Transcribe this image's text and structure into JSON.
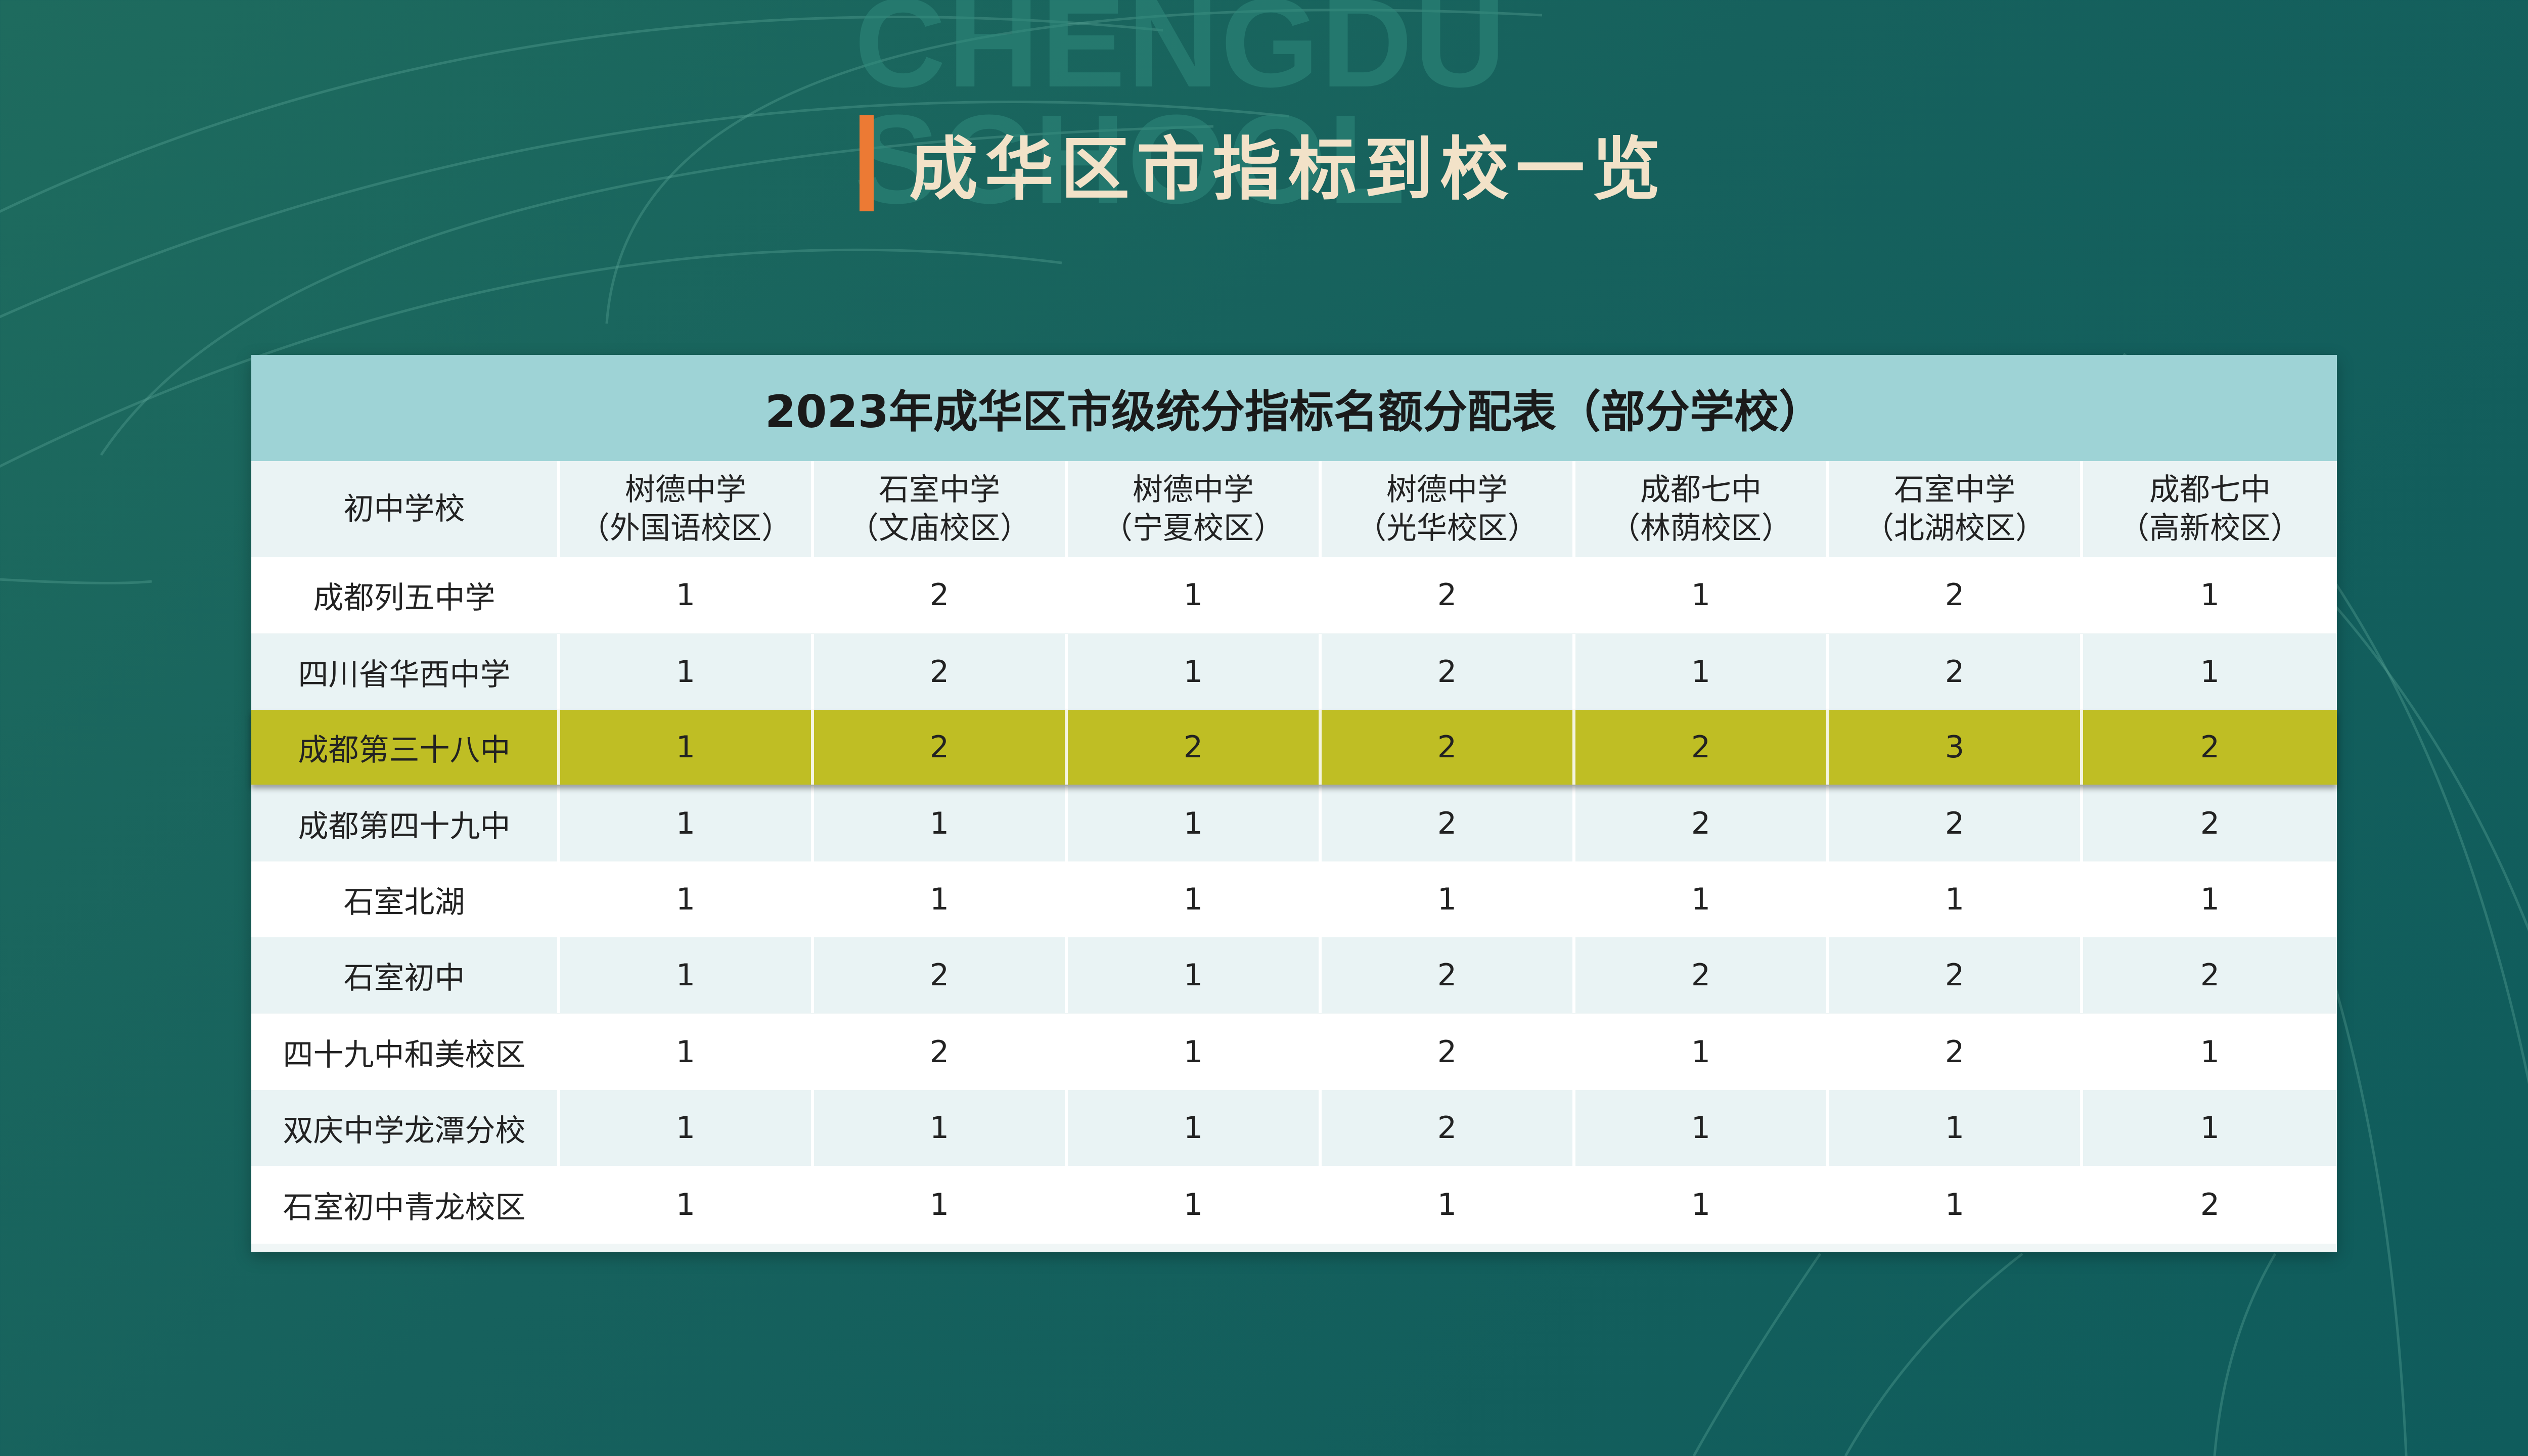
{
  "background": {
    "watermark_lines": [
      "CHENGDU",
      "SCHOOL"
    ]
  },
  "page_title": "成华区市指标到校一览",
  "colors": {
    "accent_bar": "#ec7a34",
    "caption_bg": "#9ed3d6",
    "highlight_row": "#bfbe24",
    "title_text": "#f2e2c8"
  },
  "table": {
    "caption": "2023年成华区市级统分指标名额分配表（部分学校）",
    "corner_header": "初中学校",
    "columns": [
      {
        "line1": "树德中学",
        "line2": "（外国语校区）"
      },
      {
        "line1": "石室中学",
        "line2": "（文庙校区）"
      },
      {
        "line1": "树德中学",
        "line2": "（宁夏校区）"
      },
      {
        "line1": "树德中学",
        "line2": "（光华校区）"
      },
      {
        "line1": "成都七中",
        "line2": "（林荫校区）"
      },
      {
        "line1": "石室中学",
        "line2": "（北湖校区）"
      },
      {
        "line1": "成都七中",
        "line2": "（高新校区）"
      }
    ],
    "rows": [
      {
        "school": "成都列五中学",
        "values": [
          "1",
          "2",
          "1",
          "2",
          "1",
          "2",
          "1"
        ]
      },
      {
        "school": "四川省华西中学",
        "values": [
          "1",
          "2",
          "1",
          "2",
          "1",
          "2",
          "1"
        ]
      },
      {
        "school": "成都第三十八中",
        "values": [
          "1",
          "2",
          "2",
          "2",
          "2",
          "3",
          "2"
        ],
        "highlighted": true
      },
      {
        "school": "成都第四十九中",
        "values": [
          "1",
          "1",
          "1",
          "2",
          "2",
          "2",
          "2"
        ]
      },
      {
        "school": "石室北湖",
        "values": [
          "1",
          "1",
          "1",
          "1",
          "1",
          "1",
          "1"
        ]
      },
      {
        "school": "石室初中",
        "values": [
          "1",
          "2",
          "1",
          "2",
          "2",
          "2",
          "2"
        ]
      },
      {
        "school": "四十九中和美校区",
        "values": [
          "1",
          "2",
          "1",
          "2",
          "1",
          "2",
          "1"
        ]
      },
      {
        "school": "双庆中学龙潭分校",
        "values": [
          "1",
          "1",
          "1",
          "2",
          "1",
          "1",
          "1"
        ]
      },
      {
        "school": "石室初中青龙校区",
        "values": [
          "1",
          "1",
          "1",
          "1",
          "1",
          "1",
          "2"
        ]
      }
    ]
  }
}
